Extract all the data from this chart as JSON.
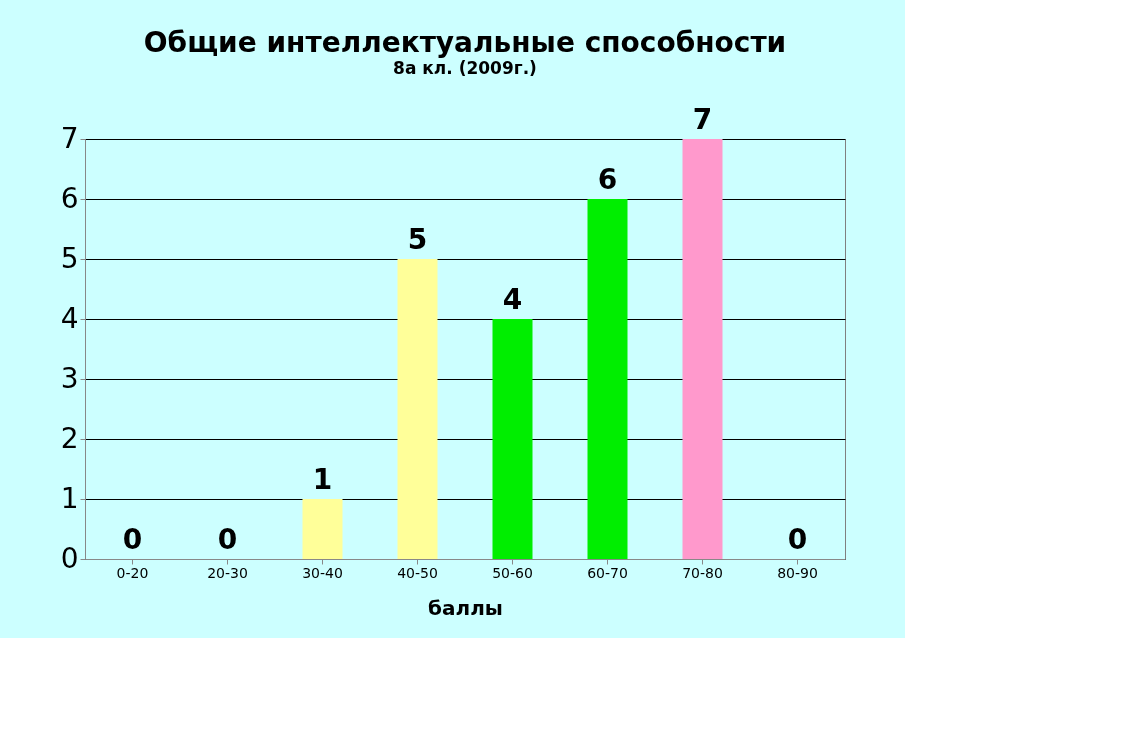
{
  "chart_data": {
    "type": "bar",
    "title": "Общие интеллектуальные способности",
    "subtitle": "8а кл. (2009г.)",
    "xlabel": "баллы",
    "categories": [
      "0-20",
      "20-30",
      "30-40",
      "40-50",
      "50-60",
      "60-70",
      "70-80",
      "80-90"
    ],
    "values": [
      0,
      0,
      1,
      5,
      4,
      6,
      7,
      0
    ],
    "colors": [
      "#9999ff",
      "#9999ff",
      "#ffff99",
      "#ffff99",
      "#00ee00",
      "#00ee00",
      "#ff99cc",
      "#9999ff"
    ],
    "ylim": [
      0,
      7
    ],
    "yticks": [
      0,
      1,
      2,
      3,
      4,
      5,
      6,
      7
    ],
    "grid": "y",
    "data_labels": true
  }
}
